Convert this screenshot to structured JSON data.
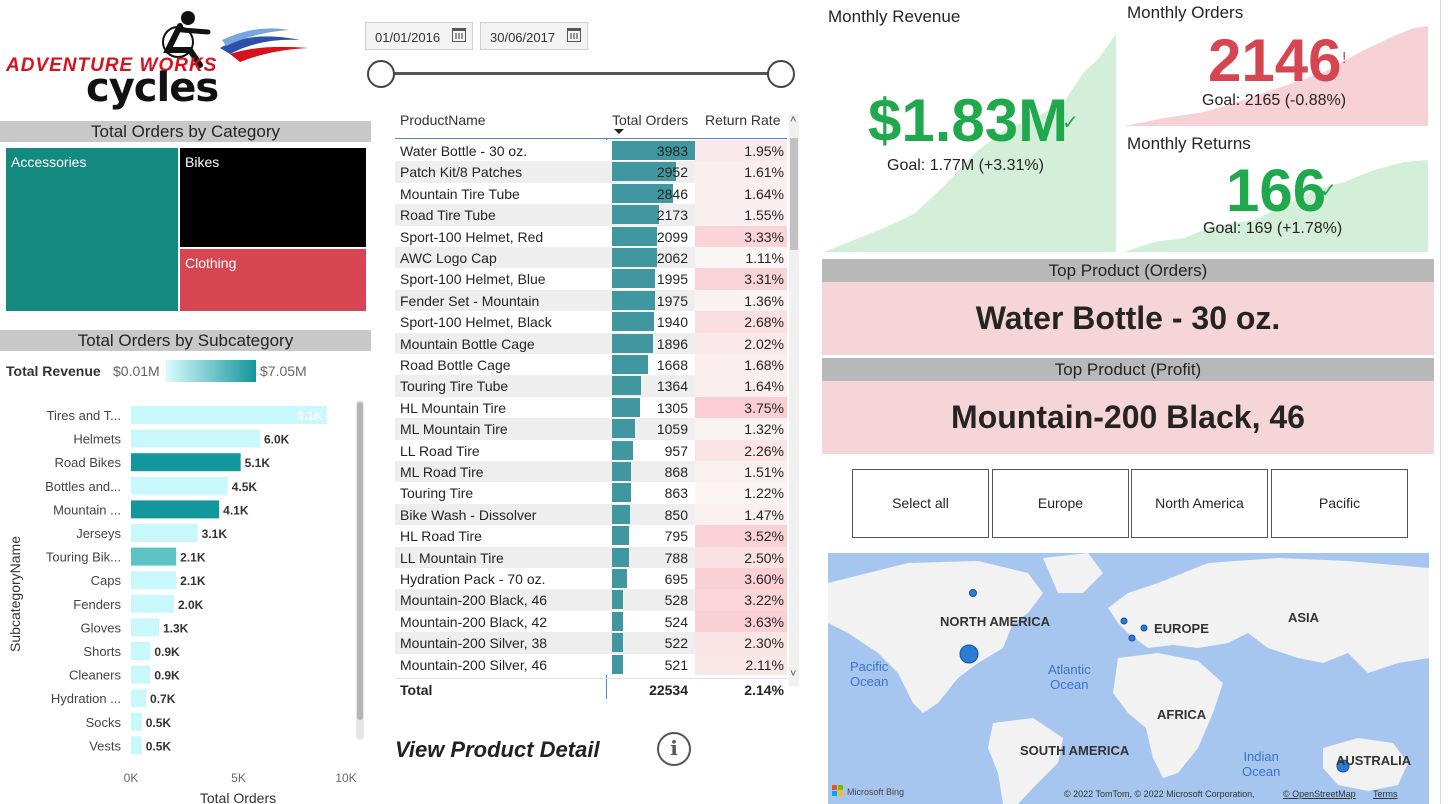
{
  "logo": {
    "line1": "ADVENTURE WORKS",
    "line2": "cycles"
  },
  "category_chart": {
    "title": "Total Orders by Category",
    "cells": [
      {
        "label": "Accessories",
        "color": "#14897f"
      },
      {
        "label": "Bikes",
        "color": "#000000"
      },
      {
        "label": "Clothing",
        "color": "#d64550"
      }
    ]
  },
  "subcategory_chart": {
    "title": "Total Orders by Subcategory",
    "legend": {
      "title": "Total Revenue",
      "min": "$0.01M",
      "max": "$7.05M"
    },
    "chart_data": {
      "type": "bar",
      "orientation": "horizontal",
      "categories": [
        "Tires and T...",
        "Helmets",
        "Road Bikes",
        "Bottles and...",
        "Mountain ...",
        "Jerseys",
        "Touring Bik...",
        "Caps",
        "Fenders",
        "Gloves",
        "Shorts",
        "Cleaners",
        "Hydration ...",
        "Socks",
        "Vests"
      ],
      "values": [
        9100,
        6000,
        5100,
        4500,
        4100,
        3100,
        2100,
        2100,
        2000,
        1300,
        900,
        900,
        700,
        500,
        500
      ],
      "labels": [
        "9.1K",
        "6.0K",
        "5.1K",
        "4.5K",
        "4.1K",
        "3.1K",
        "2.1K",
        "2.1K",
        "2.0K",
        "1.3K",
        "0.9K",
        "0.9K",
        "0.7K",
        "0.5K",
        "0.5K"
      ],
      "colors": [
        "#c8f8fb",
        "#c8f8fb",
        "#13979d",
        "#c8f8fb",
        "#13979d",
        "#c8f8fb",
        "#5cc4c6",
        "#c8f8fb",
        "#c8f8fb",
        "#c8f8fb",
        "#c8f8fb",
        "#c8f8fb",
        "#c8f8fb",
        "#c8f8fb",
        "#c8f8fb"
      ],
      "xlabel": "Total Orders",
      "ylabel": "SubcategoryName",
      "xticks": [
        "0K",
        "5K",
        "10K"
      ],
      "xlim": [
        0,
        10000
      ]
    }
  },
  "date_slicer": {
    "start": "01/01/2016",
    "end": "30/06/2017"
  },
  "product_table": {
    "headers": {
      "name": "ProductName",
      "orders": "Total Orders",
      "return_rate": "Return Rate"
    },
    "max_orders": 3983,
    "rows": [
      {
        "name": "Water Bottle - 30 oz.",
        "orders": 3983,
        "rr": "1.95%",
        "rrv": 1.95
      },
      {
        "name": "Patch Kit/8 Patches",
        "orders": 2952,
        "rr": "1.61%",
        "rrv": 1.61
      },
      {
        "name": "Mountain Tire Tube",
        "orders": 2846,
        "rr": "1.64%",
        "rrv": 1.64
      },
      {
        "name": "Road Tire Tube",
        "orders": 2173,
        "rr": "1.55%",
        "rrv": 1.55
      },
      {
        "name": "Sport-100 Helmet, Red",
        "orders": 2099,
        "rr": "3.33%",
        "rrv": 3.33
      },
      {
        "name": "AWC Logo Cap",
        "orders": 2062,
        "rr": "1.11%",
        "rrv": 1.11
      },
      {
        "name": "Sport-100 Helmet, Blue",
        "orders": 1995,
        "rr": "3.31%",
        "rrv": 3.31
      },
      {
        "name": "Fender Set - Mountain",
        "orders": 1975,
        "rr": "1.36%",
        "rrv": 1.36
      },
      {
        "name": "Sport-100 Helmet, Black",
        "orders": 1940,
        "rr": "2.68%",
        "rrv": 2.68
      },
      {
        "name": "Mountain Bottle Cage",
        "orders": 1896,
        "rr": "2.02%",
        "rrv": 2.02
      },
      {
        "name": "Road Bottle Cage",
        "orders": 1668,
        "rr": "1.68%",
        "rrv": 1.68
      },
      {
        "name": "Touring Tire Tube",
        "orders": 1364,
        "rr": "1.64%",
        "rrv": 1.64
      },
      {
        "name": "HL Mountain Tire",
        "orders": 1305,
        "rr": "3.75%",
        "rrv": 3.75
      },
      {
        "name": "ML Mountain Tire",
        "orders": 1059,
        "rr": "1.32%",
        "rrv": 1.32
      },
      {
        "name": "LL Road Tire",
        "orders": 957,
        "rr": "2.26%",
        "rrv": 2.26
      },
      {
        "name": "ML Road Tire",
        "orders": 868,
        "rr": "1.51%",
        "rrv": 1.51
      },
      {
        "name": "Touring Tire",
        "orders": 863,
        "rr": "1.22%",
        "rrv": 1.22
      },
      {
        "name": "Bike Wash - Dissolver",
        "orders": 850,
        "rr": "1.47%",
        "rrv": 1.47
      },
      {
        "name": "HL Road Tire",
        "orders": 795,
        "rr": "3.52%",
        "rrv": 3.52
      },
      {
        "name": "LL Mountain Tire",
        "orders": 788,
        "rr": "2.50%",
        "rrv": 2.5
      },
      {
        "name": "Hydration Pack - 70 oz.",
        "orders": 695,
        "rr": "3.60%",
        "rrv": 3.6
      },
      {
        "name": "Mountain-200 Black, 46",
        "orders": 528,
        "rr": "3.22%",
        "rrv": 3.22
      },
      {
        "name": "Mountain-200 Black, 42",
        "orders": 524,
        "rr": "3.63%",
        "rrv": 3.63
      },
      {
        "name": "Mountain-200 Silver, 38",
        "orders": 522,
        "rr": "2.30%",
        "rrv": 2.3
      },
      {
        "name": "Mountain-200 Silver, 46",
        "orders": 521,
        "rr": "2.11%",
        "rrv": 2.11
      }
    ],
    "total": {
      "label": "Total",
      "orders": "22534",
      "rr": "2.14%"
    }
  },
  "view_detail": {
    "label": "View Product Detail"
  },
  "kpis": {
    "revenue": {
      "title": "Monthly Revenue",
      "value": "$1.83M",
      "goal": "Goal: 1.77M (+3.31%)",
      "color": "#1fa84c"
    },
    "orders": {
      "title": "Monthly Orders",
      "value": "2146",
      "mark": "!",
      "goal": "Goal: 2165 (-0.88%)",
      "color": "#d64550"
    },
    "returns": {
      "title": "Monthly Returns",
      "value": "166",
      "goal": "Goal: 169 (+1.78%)",
      "color": "#1fa84c"
    }
  },
  "top_product_orders": {
    "title": "Top Product (Orders)",
    "value": "Water Bottle - 30 oz."
  },
  "top_product_profit": {
    "title": "Top Product (Profit)",
    "value": "Mountain-200 Black, 46"
  },
  "region_slicer": {
    "options": [
      "Select all",
      "Europe",
      "North America",
      "Pacific"
    ]
  },
  "map": {
    "labels": {
      "na": "NORTH AMERICA",
      "eu": "EUROPE",
      "asia": "ASIA",
      "africa": "AFRICA",
      "sa": "SOUTH AMERICA",
      "au": "AUSTRALIA"
    },
    "oceans": {
      "pacific": "Pacific\nOcean",
      "atlantic": "Atlantic\nOcean",
      "indian": "Indian\nOcean"
    },
    "brand": "Microsoft Bing",
    "attribution": "© 2022 TomTom, © 2022 Microsoft Corporation,",
    "osm": "© OpenStreetMap",
    "terms": "Terms"
  }
}
